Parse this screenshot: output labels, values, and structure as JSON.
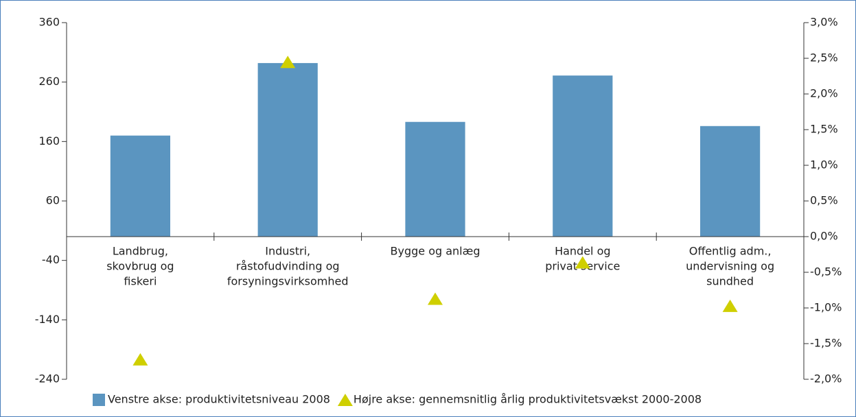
{
  "chart_data": {
    "type": "bar_triangle",
    "categories": [
      [
        "Landbrug,",
        "skovbrug og",
        "fiskeri"
      ],
      [
        "Industri,",
        "råstofudvinding og",
        "forsyningsvirksomhed"
      ],
      [
        "Bygge og anlæg"
      ],
      [
        "Handel og",
        "privat service"
      ],
      [
        "Offentlig adm.,",
        "undervisning og",
        "sundhed"
      ]
    ],
    "series": [
      {
        "name": "Venstre akse: produktivitetsniveau 2008",
        "color": "#5b95c0",
        "values": [
          170,
          292,
          193,
          271,
          186
        ]
      },
      {
        "name": "Højre akse: gennemsnitlig årlig produktivitetsvækst 2000-2008",
        "color": "#cfcf00",
        "axis": "y2",
        "values": [
          -1.73,
          2.44,
          -0.88,
          -0.37,
          -0.98
        ]
      }
    ],
    "ylim": [
      -240,
      360
    ],
    "yticks": [
      -240,
      -140,
      -40,
      60,
      160,
      260,
      360
    ],
    "y2lim": [
      -2.0,
      3.0
    ],
    "y2ticks": [
      {
        "value": -2.0,
        "label": "-2,0%"
      },
      {
        "value": -1.5,
        "label": "-1,5%"
      },
      {
        "value": -1.0,
        "label": "-1,0%"
      },
      {
        "value": -0.5,
        "label": "-0,5%"
      },
      {
        "value": 0.0,
        "label": "0,0%"
      },
      {
        "value": 0.5,
        "label": "0,5%"
      },
      {
        "value": 1.0,
        "label": "1,0%"
      },
      {
        "value": 1.5,
        "label": "1,5%"
      },
      {
        "value": 2.0,
        "label": "2,0%"
      },
      {
        "value": 2.5,
        "label": "2,5%"
      },
      {
        "value": 3.0,
        "label": "3,0%"
      }
    ]
  }
}
